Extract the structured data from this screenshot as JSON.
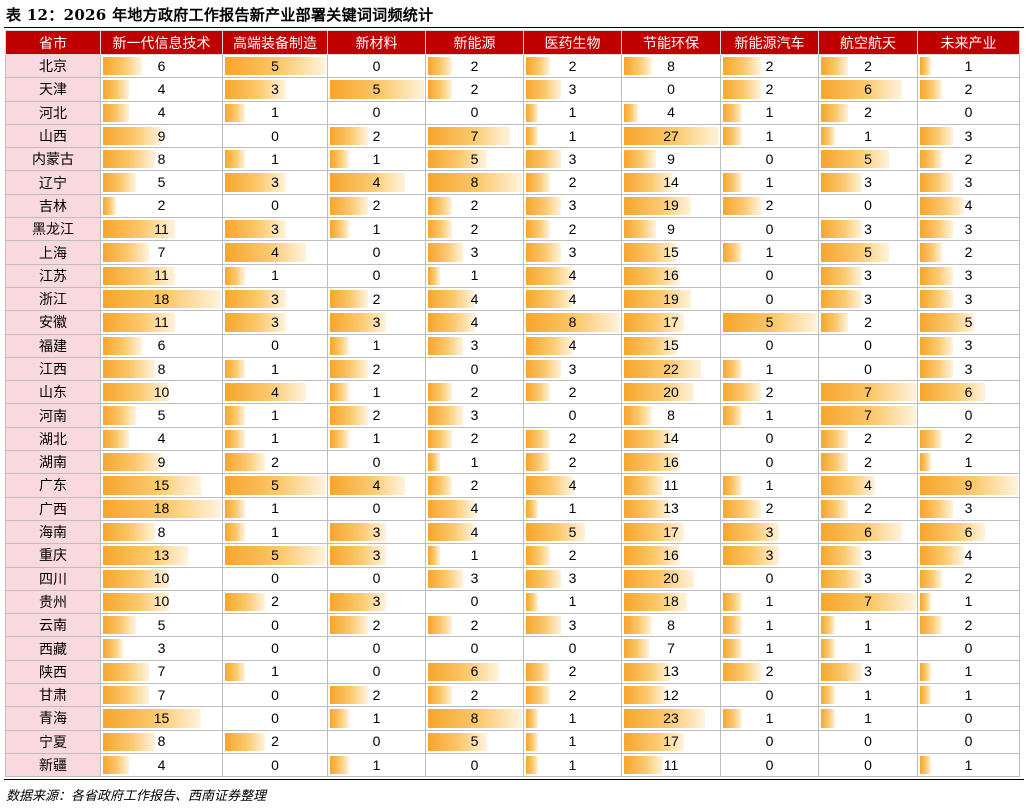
{
  "title": "表 12：2026 年地方政府工作报告新产业部署关键词词频统计",
  "source": "数据来源：各省政府工作报告、西南证券整理",
  "colors": {
    "header_bg": "#c00000",
    "province_bg": "#f9d9df",
    "bar": "#f7a52c"
  },
  "header": {
    "province": "省市",
    "columns": [
      "新一代信息技术",
      "高端装备制造",
      "新材料",
      "新能源",
      "医药生物",
      "节能环保",
      "新能源汽车",
      "航空航天",
      "未来产业"
    ]
  },
  "rows": [
    {
      "province": "北京",
      "values": [
        6,
        5,
        0,
        2,
        2,
        8,
        2,
        2,
        1
      ]
    },
    {
      "province": "天津",
      "values": [
        4,
        3,
        5,
        2,
        3,
        0,
        2,
        6,
        2
      ]
    },
    {
      "province": "河北",
      "values": [
        4,
        1,
        0,
        0,
        1,
        4,
        1,
        2,
        0
      ]
    },
    {
      "province": "山西",
      "values": [
        9,
        0,
        2,
        7,
        1,
        27,
        1,
        1,
        3
      ]
    },
    {
      "province": "内蒙古",
      "values": [
        8,
        1,
        1,
        5,
        3,
        9,
        0,
        5,
        2
      ]
    },
    {
      "province": "辽宁",
      "values": [
        5,
        3,
        4,
        8,
        2,
        14,
        1,
        3,
        3
      ]
    },
    {
      "province": "吉林",
      "values": [
        2,
        0,
        2,
        2,
        3,
        19,
        2,
        0,
        4
      ]
    },
    {
      "province": "黑龙江",
      "values": [
        11,
        3,
        1,
        2,
        2,
        9,
        0,
        3,
        3
      ]
    },
    {
      "province": "上海",
      "values": [
        7,
        4,
        0,
        3,
        3,
        15,
        1,
        5,
        2
      ]
    },
    {
      "province": "江苏",
      "values": [
        11,
        1,
        0,
        1,
        4,
        16,
        0,
        3,
        3
      ]
    },
    {
      "province": "浙江",
      "values": [
        18,
        3,
        2,
        4,
        4,
        19,
        0,
        3,
        3
      ]
    },
    {
      "province": "安徽",
      "values": [
        11,
        3,
        3,
        4,
        8,
        17,
        5,
        2,
        5
      ]
    },
    {
      "province": "福建",
      "values": [
        6,
        0,
        1,
        3,
        4,
        15,
        0,
        0,
        3
      ]
    },
    {
      "province": "江西",
      "values": [
        8,
        1,
        2,
        0,
        3,
        22,
        1,
        0,
        3
      ]
    },
    {
      "province": "山东",
      "values": [
        10,
        4,
        1,
        2,
        2,
        20,
        2,
        7,
        6
      ]
    },
    {
      "province": "河南",
      "values": [
        5,
        1,
        2,
        3,
        0,
        8,
        1,
        7,
        0
      ]
    },
    {
      "province": "湖北",
      "values": [
        4,
        1,
        1,
        2,
        2,
        14,
        0,
        2,
        2
      ]
    },
    {
      "province": "湖南",
      "values": [
        9,
        2,
        0,
        1,
        2,
        16,
        0,
        2,
        1
      ]
    },
    {
      "province": "广东",
      "values": [
        15,
        5,
        4,
        2,
        4,
        11,
        1,
        4,
        9
      ]
    },
    {
      "province": "广西",
      "values": [
        18,
        1,
        0,
        4,
        1,
        13,
        2,
        2,
        3
      ]
    },
    {
      "province": "海南",
      "values": [
        8,
        1,
        3,
        4,
        5,
        17,
        3,
        6,
        6
      ]
    },
    {
      "province": "重庆",
      "values": [
        13,
        5,
        3,
        1,
        2,
        16,
        3,
        3,
        4
      ]
    },
    {
      "province": "四川",
      "values": [
        10,
        0,
        0,
        3,
        3,
        20,
        0,
        3,
        2
      ]
    },
    {
      "province": "贵州",
      "values": [
        10,
        2,
        3,
        0,
        1,
        18,
        1,
        7,
        1
      ]
    },
    {
      "province": "云南",
      "values": [
        5,
        0,
        2,
        2,
        3,
        8,
        1,
        1,
        2
      ]
    },
    {
      "province": "西藏",
      "values": [
        3,
        0,
        0,
        0,
        0,
        7,
        1,
        1,
        0
      ]
    },
    {
      "province": "陕西",
      "values": [
        7,
        1,
        0,
        6,
        2,
        13,
        2,
        3,
        1
      ]
    },
    {
      "province": "甘肃",
      "values": [
        7,
        0,
        2,
        2,
        2,
        12,
        0,
        1,
        1
      ]
    },
    {
      "province": "青海",
      "values": [
        15,
        0,
        1,
        8,
        1,
        23,
        1,
        1,
        0
      ]
    },
    {
      "province": "宁夏",
      "values": [
        8,
        2,
        0,
        5,
        1,
        17,
        0,
        0,
        0
      ]
    },
    {
      "province": "新疆",
      "values": [
        4,
        0,
        1,
        0,
        1,
        11,
        0,
        0,
        1
      ]
    }
  ]
}
